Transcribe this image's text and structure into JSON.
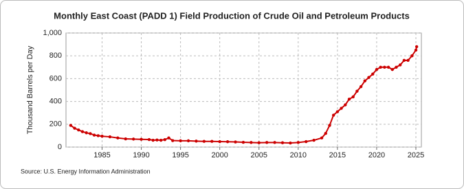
{
  "chart_data": {
    "type": "line",
    "title": "Monthly East Coast (PADD 1) Field Production of Crude Oil and Petroleum Products",
    "y_label": "Thousand Barrels per Day",
    "source": "Source: U.S. Energy Information Administration",
    "x": [
      1981,
      1981.5,
      1982,
      1982.5,
      1983,
      1983.5,
      1984,
      1984.5,
      1985,
      1986,
      1987,
      1988,
      1989,
      1990,
      1991,
      1991.5,
      1992,
      1992.5,
      1993,
      1993.5,
      1994,
      1995,
      1996,
      1997,
      1998,
      1999,
      2000,
      2001,
      2002,
      2003,
      2004,
      2005,
      2006,
      2007,
      2008,
      2009,
      2010,
      2011,
      2012,
      2013,
      2013.5,
      2014,
      2014.5,
      2015,
      2015.5,
      2016,
      2016.5,
      2017,
      2017.5,
      2018,
      2018.5,
      2019,
      2019.5,
      2020,
      2020.5,
      2021,
      2021.5,
      2022,
      2022.5,
      2023,
      2023.5,
      2024,
      2024.5,
      2025,
      2025.1
    ],
    "series": [
      {
        "name": "East Coast (PADD 1) Field Production",
        "color": "#cc0000",
        "values": [
          190,
          165,
          150,
          135,
          125,
          118,
          105,
          100,
          95,
          90,
          80,
          72,
          70,
          68,
          66,
          60,
          62,
          60,
          65,
          80,
          57,
          55,
          55,
          52,
          50,
          50,
          48,
          47,
          45,
          42,
          40,
          38,
          40,
          40,
          38,
          36,
          40,
          48,
          60,
          80,
          120,
          190,
          280,
          310,
          340,
          370,
          420,
          440,
          490,
          530,
          580,
          610,
          640,
          680,
          700,
          700,
          700,
          680,
          700,
          720,
          760,
          760,
          800,
          850,
          880
        ]
      }
    ],
    "xlim": [
      1980.4,
      2025.7
    ],
    "xticks": [
      1985,
      1990,
      1995,
      2000,
      2005,
      2010,
      2015,
      2020,
      2025
    ],
    "ylim": [
      0,
      1000
    ],
    "yticks": [
      0,
      200,
      400,
      600,
      800,
      {
        "value": 1000,
        "label": "1,000"
      }
    ],
    "grid": true
  }
}
